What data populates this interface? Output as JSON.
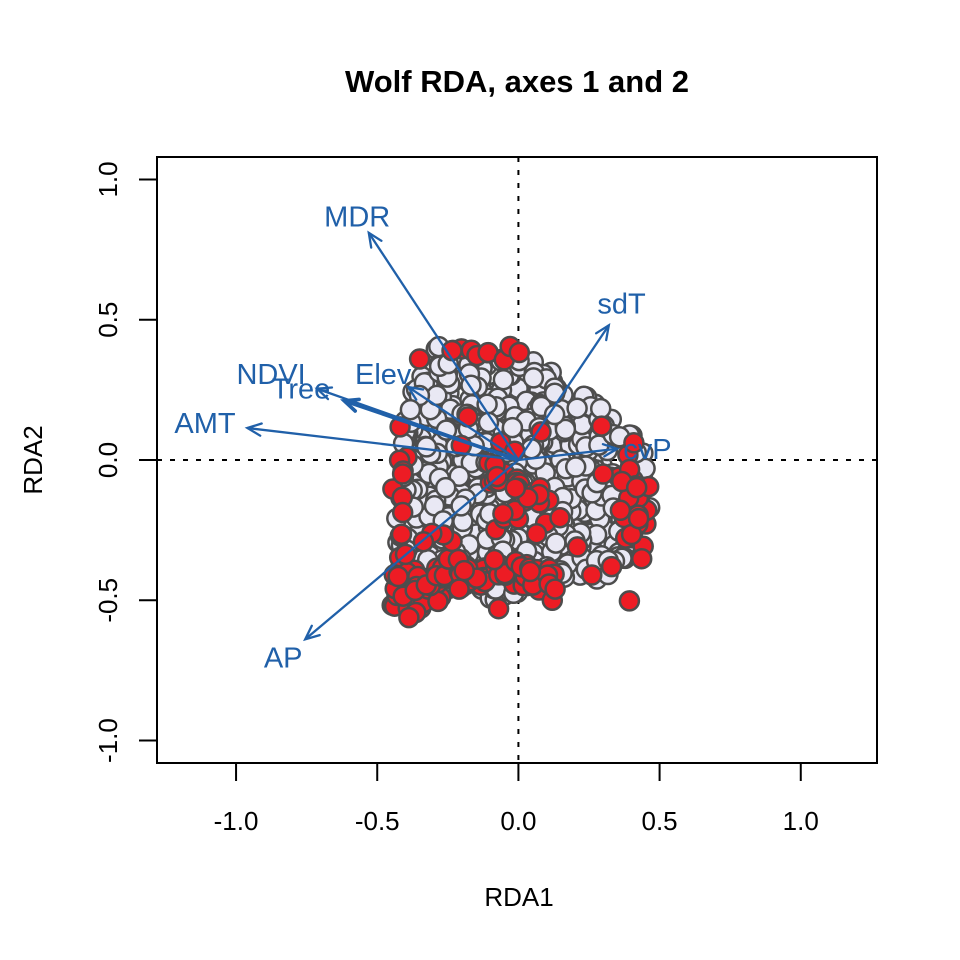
{
  "chart_data": {
    "type": "scatter",
    "title": "Wolf RDA, axes 1 and 2",
    "xlabel": "RDA1",
    "ylabel": "RDA2",
    "xlim": [
      -1.28,
      1.27
    ],
    "ylim": [
      -1.08,
      1.08
    ],
    "x_ticks": [
      -1.0,
      -0.5,
      0.0,
      0.5,
      1.0
    ],
    "x_tick_labels": [
      "-1.0",
      "-0.5",
      "0.0",
      "0.5",
      "1.0"
    ],
    "y_ticks": [
      -1.0,
      -0.5,
      0.0,
      0.5,
      1.0
    ],
    "y_tick_labels": [
      "-1.0",
      "-0.5",
      "0.0",
      "0.5",
      "1.0"
    ],
    "grid": false,
    "legend": null,
    "reference_lines": {
      "vertical_x": 0.0,
      "horizontal_y": 0.0,
      "style": "dotted",
      "color": "#000000"
    },
    "colors": {
      "arrow_blue": "#2060A9",
      "site_fill": "#E9E8F4",
      "site_stroke": "#4D4D4D",
      "presence_fill": "#ED1C24",
      "axis_black": "#000000"
    },
    "arrows": [
      {
        "label": "MDR",
        "x": -0.53,
        "y": 0.81,
        "label_x": -0.571,
        "label_y": 0.868,
        "lw": 2.3
      },
      {
        "label": "sdT",
        "x": 0.32,
        "y": 0.48,
        "label_x": 0.365,
        "label_y": 0.557,
        "lw": 2.3
      },
      {
        "label": "cvP",
        "x": 0.35,
        "y": 0.04,
        "label_x": 0.457,
        "label_y": 0.039,
        "lw": 2.3
      },
      {
        "label": "Elev",
        "x": -0.39,
        "y": 0.26,
        "label_x": -0.479,
        "label_y": 0.307,
        "lw": 2.3
      },
      {
        "label": "NDVI",
        "x": -0.713,
        "y": 0.254,
        "label_x": -0.876,
        "label_y": 0.307,
        "lw": 2.3
      },
      {
        "label": "Tree",
        "x": -0.617,
        "y": 0.211,
        "label_x": -0.77,
        "label_y": 0.254,
        "lw": 3.6
      },
      {
        "label": "AMT",
        "x": -0.96,
        "y": 0.114,
        "label_x": -1.11,
        "label_y": 0.132,
        "lw": 2.3
      },
      {
        "label": "AP",
        "x": -0.755,
        "y": -0.639,
        "label_x": -0.833,
        "label_y": -0.704,
        "lw": 2.3
      }
    ],
    "scatter": {
      "seed": 7,
      "point_radius": 9.5,
      "point_stroke_width": 2.5,
      "background_sites": {
        "n": 680,
        "hull": [
          [
            -0.28,
            0.41
          ],
          [
            0.04,
            0.36
          ],
          [
            0.22,
            0.25
          ],
          [
            0.43,
            0.08
          ],
          [
            0.48,
            -0.14
          ],
          [
            0.43,
            -0.32
          ],
          [
            0.29,
            -0.43
          ],
          [
            0.07,
            -0.44
          ],
          [
            -0.07,
            -0.5
          ],
          [
            -0.3,
            -0.46
          ],
          [
            -0.42,
            -0.43
          ],
          [
            -0.44,
            -0.14
          ],
          [
            -0.42,
            0.11
          ],
          [
            -0.37,
            0.29
          ]
        ]
      },
      "red_clusters": [
        {
          "name": "bottom-left-lobe",
          "type": "gauss",
          "n": 40,
          "cx": -0.355,
          "cy": -0.465,
          "sx": 0.05,
          "sy": 0.05
        },
        {
          "name": "bottom-band",
          "type": "band",
          "n": 46,
          "x1": -0.31,
          "y1": -0.4,
          "x2": 0.1,
          "y2": -0.4,
          "jx": 0.025,
          "jy": 0.03
        },
        {
          "name": "right-edge",
          "type": "gauss",
          "n": 28,
          "cx": 0.415,
          "cy": -0.16,
          "sx": 0.028,
          "sy": 0.1
        },
        {
          "name": "left-edge",
          "type": "band",
          "n": 10,
          "x1": -0.415,
          "y1": 0.08,
          "x2": -0.405,
          "y2": -0.33,
          "jx": 0.012,
          "jy": 0.02
        },
        {
          "name": "top-edge",
          "type": "band",
          "n": 9,
          "x1": -0.22,
          "y1": 0.4,
          "x2": 0.0,
          "y2": 0.375,
          "jx": 0.02,
          "jy": 0.012
        },
        {
          "name": "center-streak",
          "type": "band",
          "n": 18,
          "x1": -0.13,
          "y1": -0.03,
          "x2": 0.12,
          "y2": -0.16,
          "jx": 0.03,
          "jy": 0.03
        },
        {
          "name": "interior-scatter",
          "type": "gauss",
          "n": 24,
          "cx": -0.05,
          "cy": -0.16,
          "sx": 0.17,
          "sy": 0.15,
          "clip": true
        }
      ],
      "red_singles": [
        [
          0.12,
          -0.5
        ],
        [
          0.26,
          -0.41
        ],
        [
          -0.07,
          -0.53
        ],
        [
          0.33,
          -0.38
        ],
        [
          -0.35,
          0.36
        ],
        [
          0.3,
          -0.05
        ],
        [
          -0.41,
          -0.05
        ],
        [
          0.08,
          0.1
        ],
        [
          -0.21,
          -0.46
        ],
        [
          0.13,
          -0.46
        ]
      ]
    }
  }
}
